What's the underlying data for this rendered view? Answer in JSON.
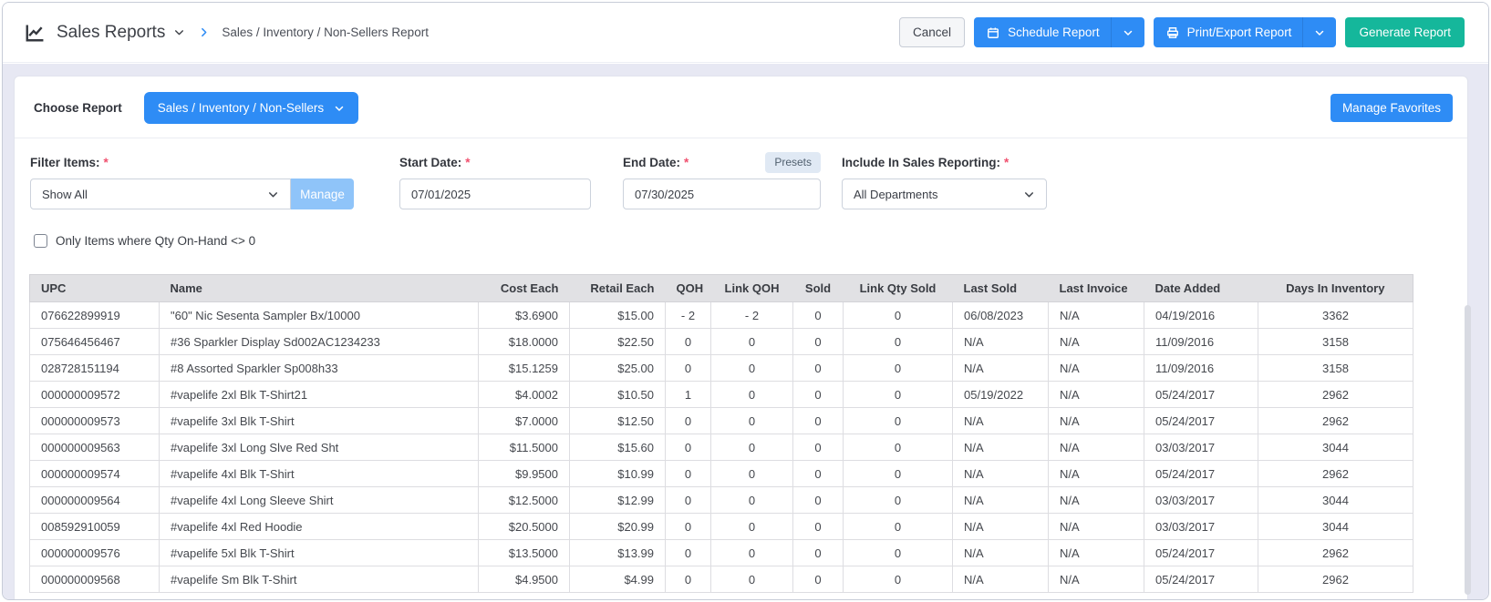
{
  "header": {
    "title": "Sales Reports",
    "breadcrumb": "Sales / Inventory / Non-Sellers Report",
    "buttons": {
      "cancel": "Cancel",
      "schedule": "Schedule Report",
      "print_export": "Print/Export Report",
      "generate": "Generate Report"
    }
  },
  "report_bar": {
    "choose_label": "Choose Report",
    "selected_report": "Sales / Inventory / Non-Sellers",
    "manage_favorites": "Manage Favorites"
  },
  "filters": {
    "required_marker": "*",
    "filter_items": {
      "label": "Filter Items:",
      "value": "Show All",
      "manage": "Manage"
    },
    "start_date": {
      "label": "Start Date:",
      "value": "07/01/2025"
    },
    "end_date": {
      "label": "End Date:",
      "value": "07/30/2025",
      "presets": "Presets"
    },
    "include_sales": {
      "label": "Include In Sales Reporting:",
      "value": "All Departments"
    },
    "qoh_checkbox": {
      "label": "Only Items where Qty On-Hand <> 0",
      "checked": false
    }
  },
  "table": {
    "columns": [
      "UPC",
      "Name",
      "Cost Each",
      "Retail Each",
      "QOH",
      "Link QOH",
      "Sold",
      "Link Qty Sold",
      "Last Sold",
      "Last Invoice",
      "Date Added",
      "Days In Inventory"
    ],
    "rows": [
      [
        "076622899919",
        "\"60\" Nic Sesenta Sampler Bx/10000",
        "$3.6900",
        "$15.00",
        "- 2",
        "- 2",
        "0",
        "0",
        "06/08/2023",
        "N/A",
        "04/19/2016",
        "3362"
      ],
      [
        "075646456467",
        "#36 Sparkler Display Sd002AC1234233",
        "$18.0000",
        "$22.50",
        "0",
        "0",
        "0",
        "0",
        "N/A",
        "N/A",
        "11/09/2016",
        "3158"
      ],
      [
        "028728151194",
        "#8 Assorted Sparkler Sp008h33",
        "$15.1259",
        "$25.00",
        "0",
        "0",
        "0",
        "0",
        "N/A",
        "N/A",
        "11/09/2016",
        "3158"
      ],
      [
        "000000009572",
        "#vapelife 2xl Blk T-Shirt21",
        "$4.0002",
        "$10.50",
        "1",
        "0",
        "0",
        "0",
        "05/19/2022",
        "N/A",
        "05/24/2017",
        "2962"
      ],
      [
        "000000009573",
        "#vapelife 3xl Blk T-Shirt",
        "$7.0000",
        "$12.50",
        "0",
        "0",
        "0",
        "0",
        "N/A",
        "N/A",
        "05/24/2017",
        "2962"
      ],
      [
        "000000009563",
        "#vapelife 3xl Long Slve Red Sht",
        "$11.5000",
        "$15.60",
        "0",
        "0",
        "0",
        "0",
        "N/A",
        "N/A",
        "03/03/2017",
        "3044"
      ],
      [
        "000000009574",
        "#vapelife 4xl Blk T-Shirt",
        "$9.9500",
        "$10.99",
        "0",
        "0",
        "0",
        "0",
        "N/A",
        "N/A",
        "05/24/2017",
        "2962"
      ],
      [
        "000000009564",
        "#vapelife 4xl Long Sleeve Shirt",
        "$12.5000",
        "$12.99",
        "0",
        "0",
        "0",
        "0",
        "N/A",
        "N/A",
        "03/03/2017",
        "3044"
      ],
      [
        "008592910059",
        "#vapelife 4xl Red Hoodie",
        "$20.5000",
        "$20.99",
        "0",
        "0",
        "0",
        "0",
        "N/A",
        "N/A",
        "03/03/2017",
        "3044"
      ],
      [
        "000000009576",
        "#vapelife 5xl Blk T-Shirt",
        "$13.5000",
        "$13.99",
        "0",
        "0",
        "0",
        "0",
        "N/A",
        "N/A",
        "05/24/2017",
        "2962"
      ],
      [
        "000000009568",
        "#vapelife Sm Blk T-Shirt",
        "$4.9500",
        "$4.99",
        "0",
        "0",
        "0",
        "0",
        "N/A",
        "N/A",
        "05/24/2017",
        "2962"
      ]
    ]
  },
  "colors": {
    "accent_blue": "#2e8cf5",
    "accent_teal": "#15b79b",
    "required_red": "#f0506e"
  }
}
